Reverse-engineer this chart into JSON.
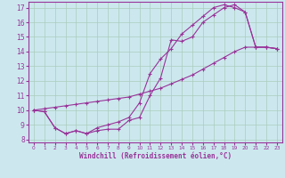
{
  "xlabel": "Windchill (Refroidissement éolien,°C)",
  "bg_color": "#cce8ee",
  "grid_color": "#aaccbb",
  "line_color": "#993399",
  "xlim": [
    -0.5,
    23.5
  ],
  "ylim": [
    7.8,
    17.4
  ],
  "xticks": [
    0,
    1,
    2,
    3,
    4,
    5,
    6,
    7,
    8,
    9,
    10,
    11,
    12,
    13,
    14,
    15,
    16,
    17,
    18,
    19,
    20,
    21,
    22,
    23
  ],
  "yticks": [
    8,
    9,
    10,
    11,
    12,
    13,
    14,
    15,
    16,
    17
  ],
  "line1_x": [
    0,
    1,
    2,
    3,
    4,
    5,
    6,
    7,
    8,
    9,
    10,
    11,
    12,
    13,
    14,
    15,
    16,
    17,
    18,
    19,
    20,
    21,
    22,
    23
  ],
  "line1_y": [
    10.0,
    9.9,
    8.8,
    8.4,
    8.6,
    8.4,
    8.6,
    8.7,
    8.7,
    9.3,
    9.5,
    11.0,
    12.2,
    14.8,
    14.7,
    15.0,
    16.0,
    16.5,
    17.0,
    17.2,
    16.7,
    14.3,
    14.3,
    14.2
  ],
  "line2_x": [
    0,
    1,
    2,
    3,
    4,
    5,
    6,
    7,
    8,
    9,
    10,
    11,
    12,
    13,
    14,
    15,
    16,
    17,
    18,
    19,
    20,
    21,
    22,
    23
  ],
  "line2_y": [
    10.0,
    10.1,
    10.2,
    10.3,
    10.4,
    10.5,
    10.6,
    10.7,
    10.8,
    10.9,
    11.1,
    11.3,
    11.5,
    11.8,
    12.1,
    12.4,
    12.8,
    13.2,
    13.6,
    14.0,
    14.3,
    14.3,
    14.3,
    14.2
  ],
  "line3_x": [
    0,
    1,
    2,
    3,
    4,
    5,
    6,
    7,
    8,
    9,
    10,
    11,
    12,
    13,
    14,
    15,
    16,
    17,
    18,
    19,
    20,
    21,
    22,
    23
  ],
  "line3_y": [
    10.0,
    9.9,
    8.8,
    8.4,
    8.6,
    8.4,
    8.8,
    9.0,
    9.2,
    9.5,
    10.5,
    12.5,
    13.5,
    14.2,
    15.2,
    15.8,
    16.4,
    17.0,
    17.2,
    17.0,
    16.7,
    14.3,
    14.3,
    14.2
  ]
}
